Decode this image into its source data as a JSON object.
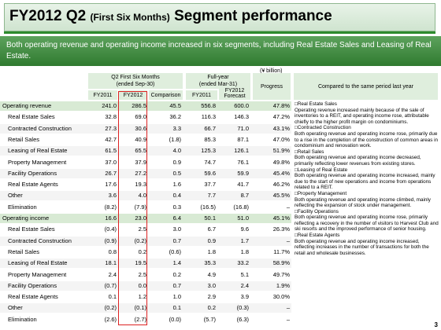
{
  "header": {
    "title_main": "FY2012 Q2",
    "title_sub": "(First Six Months)",
    "title_tail": "Segment performance"
  },
  "banner": {
    "text": "Both operating revenue and operating income increased in six segments, including Real Estate Sales and Leasing of Real Estate."
  },
  "unit_label": "(¥ billion)",
  "table": {
    "group1_header": "Q2 First Six Months\n(ended Sep-30)",
    "group2_header": "Full-year\n(ended Mar-31)",
    "progress_header": "Progress",
    "compared_header": "Compared to the same period last year",
    "col_fy2011": "FY2011",
    "col_fy2012": "FY2012",
    "col_comparison": "Comparison",
    "col_fy2011_full": "FY2011",
    "col_fy2012_forecast": "FY2012\nForecast",
    "rows": [
      {
        "label": "Operating revenue",
        "bold": true,
        "v": [
          "241.0",
          "286.5",
          "45.5",
          "556.8",
          "600.0",
          "47.8%"
        ]
      },
      {
        "label": "Real Estate Sales",
        "bold": false,
        "v": [
          "32.8",
          "69.0",
          "36.2",
          "116.3",
          "146.3",
          "47.2%"
        ]
      },
      {
        "label": "Contracted Construction",
        "bold": false,
        "v": [
          "27.3",
          "30.6",
          "3.3",
          "66.7",
          "71.0",
          "43.1%"
        ]
      },
      {
        "label": "Retail Sales",
        "bold": false,
        "v": [
          "42.7",
          "40.9",
          "(1.8)",
          "85.3",
          "87.1",
          "47.0%"
        ]
      },
      {
        "label": "Leasing of Real Estate",
        "bold": false,
        "v": [
          "61.5",
          "65.5",
          "4.0",
          "125.3",
          "126.1",
          "51.9%"
        ]
      },
      {
        "label": "Property Management",
        "bold": false,
        "v": [
          "37.0",
          "37.9",
          "0.9",
          "74.7",
          "76.1",
          "49.8%"
        ]
      },
      {
        "label": "Facility Operations",
        "bold": false,
        "v": [
          "26.7",
          "27.2",
          "0.5",
          "59.6",
          "59.9",
          "45.4%"
        ]
      },
      {
        "label": "Real Estate Agents",
        "bold": false,
        "v": [
          "17.6",
          "19.3",
          "1.6",
          "37.7",
          "41.7",
          "46.2%"
        ]
      },
      {
        "label": "Other",
        "bold": false,
        "v": [
          "3.6",
          "4.0",
          "0.4",
          "7.7",
          "8.7",
          "45.5%"
        ]
      },
      {
        "label": "Elimination",
        "bold": false,
        "v": [
          "(8.2)",
          "(7.9)",
          "0.3",
          "(16.5)",
          "(16.8)",
          "–"
        ]
      },
      {
        "label": "Operating income",
        "bold": true,
        "v": [
          "16.6",
          "23.0",
          "6.4",
          "50.1",
          "51.0",
          "45.1%"
        ]
      },
      {
        "label": "Real Estate Sales",
        "bold": false,
        "v": [
          "(0.4)",
          "2.5",
          "3.0",
          "6.7",
          "9.6",
          "26.3%"
        ]
      },
      {
        "label": "Contracted Construction",
        "bold": false,
        "v": [
          "(0.9)",
          "(0.2)",
          "0.7",
          "0.9",
          "1.7",
          "–"
        ]
      },
      {
        "label": "Retail Sales",
        "bold": false,
        "v": [
          "0.8",
          "0.2",
          "(0.6)",
          "1.8",
          "1.8",
          "11.7%"
        ]
      },
      {
        "label": "Leasing of Real Estate",
        "bold": false,
        "v": [
          "18.1",
          "19.5",
          "1.4",
          "35.3",
          "33.2",
          "58.9%"
        ]
      },
      {
        "label": "Property Management",
        "bold": false,
        "v": [
          "2.4",
          "2.5",
          "0.2",
          "4.9",
          "5.1",
          "49.7%"
        ]
      },
      {
        "label": "Facility Operations",
        "bold": false,
        "v": [
          "(0.7)",
          "0.0",
          "0.7",
          "3.0",
          "2.4",
          "1.9%"
        ]
      },
      {
        "label": "Real Estate Agents",
        "bold": false,
        "v": [
          "0.1",
          "1.2",
          "1.0",
          "2.9",
          "3.9",
          "30.0%"
        ]
      },
      {
        "label": "Other",
        "bold": false,
        "v": [
          "(0.2)",
          "(0.1)",
          "0.1",
          "0.2",
          "(0.3)",
          "–"
        ]
      },
      {
        "label": "Elimination",
        "bold": false,
        "v": [
          "(2.6)",
          "(2.7)",
          "(0.0)",
          "(5.7)",
          "(6.3)",
          "–"
        ]
      }
    ]
  },
  "notes": [
    {
      "title": "Real Estate Sales",
      "body": "Operating revenue increased mainly because of the sale of inventories to a REIT, and operating income rose, attributable chiefly to the higher profit margin on condominiums."
    },
    {
      "title": "Contracted Construction",
      "body": "Both operating revenue and operating income rose, primarily due to a rise in the completion of the construction of common areas in condominium and renovation work."
    },
    {
      "title": "Retail Sales",
      "body": "Both operating revenue and operating income decreased, primarily reflecting lower revenues from existing stores."
    },
    {
      "title": "Leasing of Real Estate",
      "body": "Both operating revenue and operating income increased, mainly due to the start of new operations and income from operations related to a REIT."
    },
    {
      "title": "Property Management",
      "body": "Both operating revenue and operating income climbed, mainly reflecting the expansion of stock under management."
    },
    {
      "title": "Facility Operations",
      "body": "Both operating revenue and operating income rose, primarily reflecting a recovery in the number of visitors to Harvest Club and ski resorts and the improved performance of senior housing."
    },
    {
      "title": "Real Estate Agents",
      "body": "Both operating revenue and operating income increased, reflecting increases in the number of transactions for both the retail and wholesale businesses."
    }
  ],
  "page_number": "3"
}
